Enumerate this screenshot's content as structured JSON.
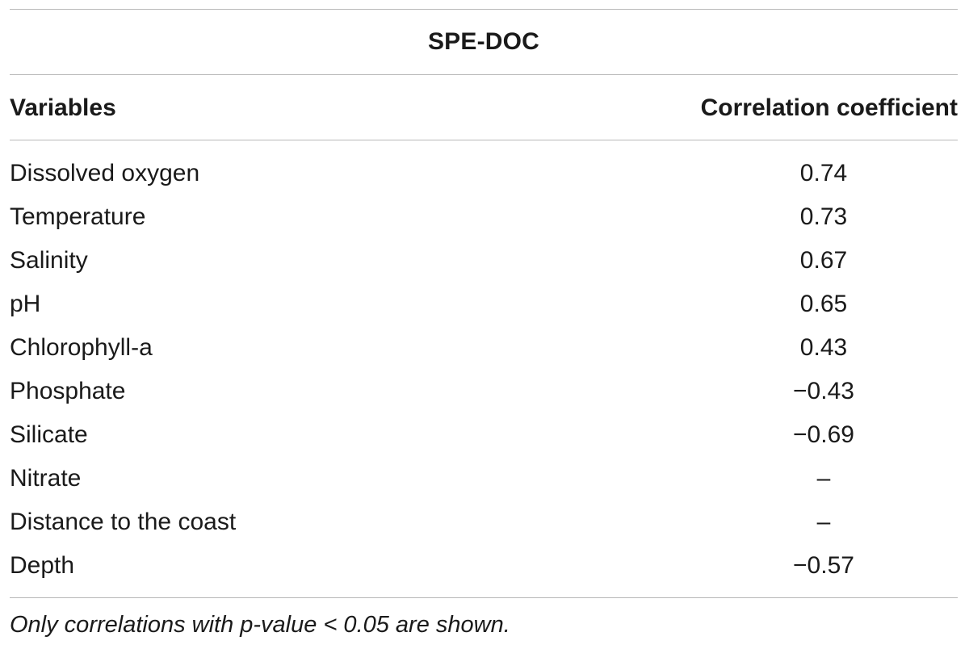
{
  "table": {
    "group_header": "SPE-DOC",
    "columns": [
      "Variables",
      "Correlation coefficient"
    ],
    "rows": [
      {
        "variable": "Dissolved oxygen",
        "coefficient": "0.74"
      },
      {
        "variable": "Temperature",
        "coefficient": "0.73"
      },
      {
        "variable": "Salinity",
        "coefficient": "0.67"
      },
      {
        "variable": "pH",
        "coefficient": "0.65"
      },
      {
        "variable": "Chlorophyll-a",
        "coefficient": "0.43"
      },
      {
        "variable": "Phosphate",
        "coefficient": "−0.43"
      },
      {
        "variable": "Silicate",
        "coefficient": "−0.69"
      },
      {
        "variable": "Nitrate",
        "coefficient": "–"
      },
      {
        "variable": "Distance to the coast",
        "coefficient": "–"
      },
      {
        "variable": "Depth",
        "coefficient": "−0.57"
      }
    ],
    "footnote": "Only correlations with p-value < 0.05 are shown."
  },
  "colors": {
    "text": "#1a1a1a",
    "rule": "#b8b8b8",
    "background": "#ffffff"
  }
}
